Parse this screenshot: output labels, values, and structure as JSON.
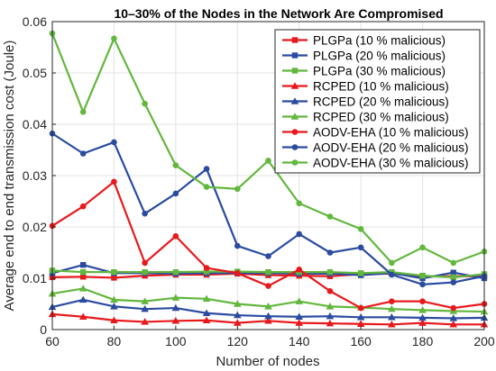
{
  "chart_data": {
    "type": "line",
    "title": "10–30% of the Nodes in the Network Are Compromised",
    "xlabel": "Number of nodes",
    "ylabel": "Average end to end transmission cost (Joule)",
    "xlim": [
      60,
      200
    ],
    "ylim": [
      0,
      0.06
    ],
    "x_ticks": [
      "60",
      "80",
      "100",
      "120",
      "140",
      "160",
      "180",
      "200"
    ],
    "y_ticks": [
      "0",
      "0.01",
      "0.02",
      "0.03",
      "0.04",
      "0.05",
      "0.06"
    ],
    "grid": true,
    "legend_position": "top-right",
    "x": [
      60,
      70,
      80,
      90,
      100,
      110,
      120,
      130,
      140,
      150,
      160,
      170,
      180,
      190,
      200
    ],
    "series": [
      {
        "name": "PLGPa (10 % malicious)",
        "color": "#e8191c",
        "marker": "square",
        "values": [
          0.0102,
          0.0103,
          0.0101,
          0.0105,
          0.0107,
          0.0107,
          0.0109,
          0.0106,
          0.0105,
          0.0104,
          0.0108,
          0.0109,
          0.0104,
          0.0104,
          0.0104
        ]
      },
      {
        "name": "PLGPa (20 % malicious)",
        "color": "#2a4ba0",
        "marker": "square",
        "values": [
          0.011,
          0.0126,
          0.011,
          0.011,
          0.0109,
          0.011,
          0.011,
          0.011,
          0.0109,
          0.0109,
          0.0106,
          0.011,
          0.01,
          0.0111,
          0.01
        ]
      },
      {
        "name": "PLGPa (30 % malicious)",
        "color": "#62b73d",
        "marker": "square",
        "values": [
          0.0115,
          0.0112,
          0.0112,
          0.0112,
          0.0112,
          0.0113,
          0.0113,
          0.0112,
          0.0112,
          0.0112,
          0.011,
          0.0112,
          0.0105,
          0.0102,
          0.0108
        ]
      },
      {
        "name": "RCPED (10 % malicious)",
        "color": "#e8191c",
        "marker": "triangle",
        "values": [
          0.003,
          0.0025,
          0.0018,
          0.0015,
          0.0017,
          0.0018,
          0.0013,
          0.0017,
          0.0013,
          0.0012,
          0.0011,
          0.001,
          0.0013,
          0.001,
          0.001
        ]
      },
      {
        "name": "RCPED (20 % malicious)",
        "color": "#2a4ba0",
        "marker": "triangle",
        "values": [
          0.0044,
          0.0058,
          0.0045,
          0.004,
          0.0042,
          0.0032,
          0.0028,
          0.0026,
          0.0025,
          0.0026,
          0.0024,
          0.0024,
          0.0023,
          0.0022,
          0.0023
        ]
      },
      {
        "name": "RCPED (30 % malicious)",
        "color": "#62b73d",
        "marker": "triangle",
        "values": [
          0.007,
          0.008,
          0.0058,
          0.0055,
          0.0062,
          0.006,
          0.005,
          0.0045,
          0.0055,
          0.0045,
          0.0043,
          0.004,
          0.0038,
          0.0036,
          0.0035
        ]
      },
      {
        "name": "AODV-EHA (10 % malicious)",
        "color": "#e8191c",
        "marker": "circle",
        "values": [
          0.0202,
          0.024,
          0.0288,
          0.013,
          0.0182,
          0.012,
          0.011,
          0.0085,
          0.0117,
          0.0075,
          0.0042,
          0.0055,
          0.0055,
          0.0042,
          0.005
        ]
      },
      {
        "name": "AODV-EHA (20 % malicious)",
        "color": "#2a4ba0",
        "marker": "circle",
        "values": [
          0.0382,
          0.0343,
          0.0365,
          0.0226,
          0.0265,
          0.0313,
          0.0163,
          0.0143,
          0.0186,
          0.015,
          0.016,
          0.0107,
          0.0088,
          0.0092,
          0.0104
        ]
      },
      {
        "name": "AODV-EHA (30 % malicious)",
        "color": "#62b73d",
        "marker": "circle",
        "values": [
          0.0577,
          0.0424,
          0.0567,
          0.044,
          0.032,
          0.0278,
          0.0274,
          0.0329,
          0.0246,
          0.022,
          0.0196,
          0.013,
          0.016,
          0.013,
          0.0152
        ]
      }
    ]
  }
}
